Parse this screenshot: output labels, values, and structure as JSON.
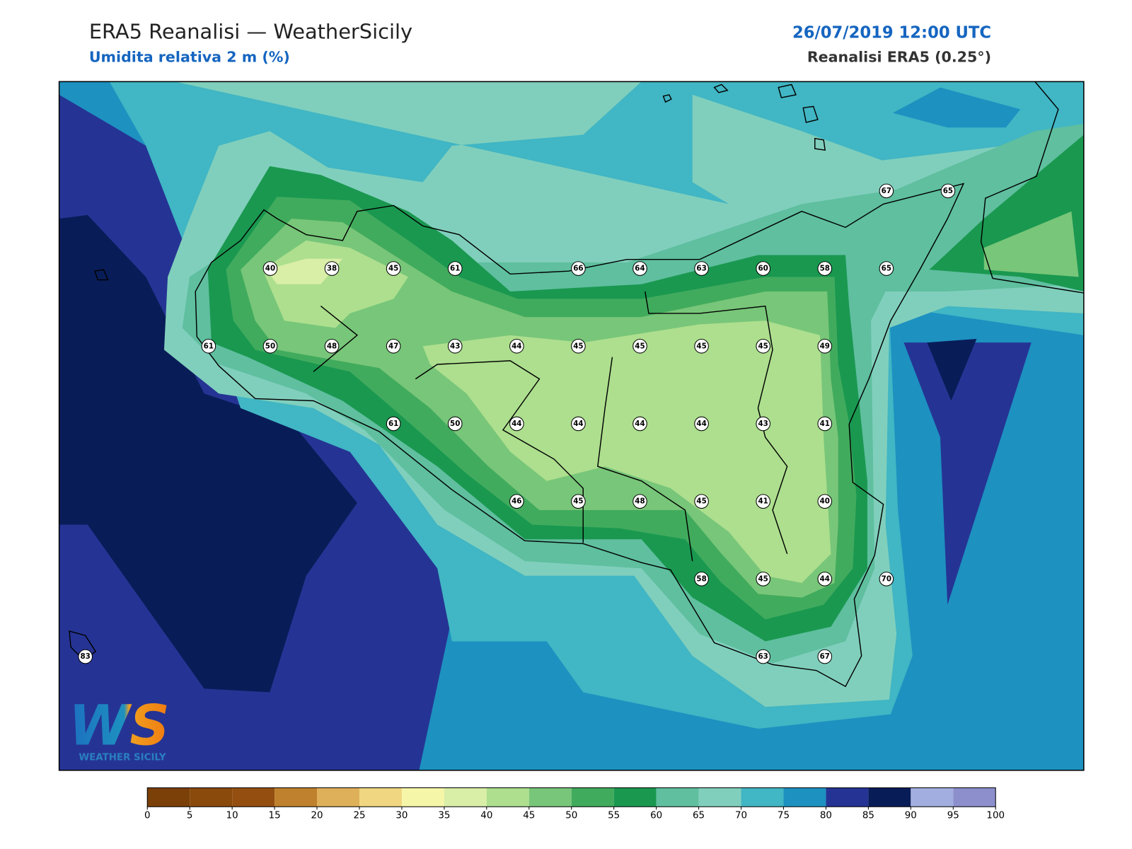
{
  "header": {
    "title": "ERA5 Reanalisi — WeatherSicily",
    "subtitle": "Umidita relativa 2 m (%)",
    "date": "26/07/2019 12:00 UTC",
    "source": "Reanalisi ERA5 (0.25°)"
  },
  "stations": {
    "values": [
      67,
      65,
      40,
      38,
      45,
      61,
      66,
      64,
      63,
      60,
      58,
      65,
      61,
      50,
      48,
      47,
      43,
      44,
      45,
      45,
      45,
      45,
      49,
      61,
      50,
      44,
      44,
      44,
      44,
      43,
      41,
      46,
      45,
      48,
      45,
      41,
      40,
      58,
      45,
      44,
      70,
      83,
      63,
      67
    ]
  },
  "colorbar": {
    "ticks": [
      0,
      5,
      10,
      15,
      20,
      25,
      30,
      35,
      40,
      45,
      50,
      55,
      60,
      65,
      70,
      75,
      80,
      85,
      90,
      95,
      100
    ],
    "colors": [
      "#7b3f08",
      "#8a4a0c",
      "#944f10",
      "#bf812d",
      "#dfb05a",
      "#f0d680",
      "#f6f6a8",
      "#d9eea6",
      "#addf8e",
      "#78c679",
      "#41ab5d",
      "#1a9850",
      "#5fbf9f",
      "#80cfbc",
      "#41b6c4",
      "#1d91c0",
      "#253494",
      "#081d58",
      "#a3aee0",
      "#8c8fcc"
    ]
  },
  "logo": {
    "mark": "WS",
    "text": "WEATHER SICILY"
  }
}
